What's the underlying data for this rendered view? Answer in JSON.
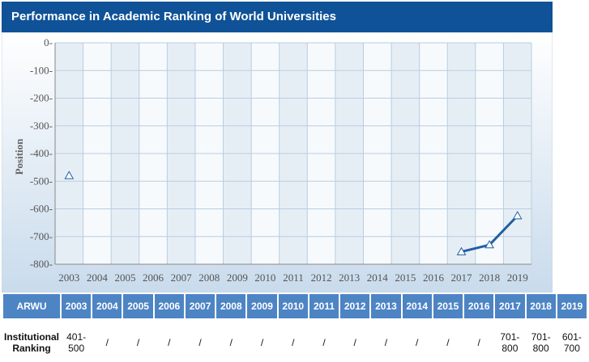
{
  "header": {
    "title": "Performance in Academic Ranking of World Universities"
  },
  "chart_data": {
    "type": "line",
    "ylabel": "Position",
    "xlabel": "",
    "x": [
      "2003",
      "2004",
      "2005",
      "2006",
      "2007",
      "2008",
      "2009",
      "2010",
      "2011",
      "2012",
      "2013",
      "2014",
      "2015",
      "2016",
      "2017",
      "2018",
      "2019"
    ],
    "ylim": [
      -800,
      0
    ],
    "yticks": [
      0,
      -100,
      -200,
      -300,
      -400,
      -500,
      -600,
      -700,
      -800
    ],
    "ytick_labels": [
      "0-",
      "-100-",
      "-200-",
      "-300-",
      "-400-",
      "-500-",
      "-600-",
      "-700-",
      "-800-"
    ],
    "grid": true,
    "series": [
      {
        "values": [
          -480,
          null,
          null,
          null,
          null,
          null,
          null,
          null,
          null,
          null,
          null,
          null,
          null,
          null,
          -755,
          -730,
          -625
        ]
      }
    ],
    "colors": {
      "line": "#1f5fa3",
      "marker_stroke": "#1f5fa3",
      "marker_fill": "#ffffff"
    }
  },
  "table": {
    "header_label": "ARWU",
    "years": [
      "2003",
      "2004",
      "2005",
      "2006",
      "2007",
      "2008",
      "2009",
      "2010",
      "2011",
      "2012",
      "2013",
      "2014",
      "2015",
      "2016",
      "2017",
      "2018",
      "2019"
    ],
    "row_label": "Institutional Ranking",
    "values": [
      "401-\n500",
      "/",
      "/",
      "/",
      "/",
      "/",
      "/",
      "/",
      "/",
      "/",
      "/",
      "/",
      "/",
      "/",
      "701-\n800",
      "701-\n800",
      "601-\n700"
    ]
  }
}
